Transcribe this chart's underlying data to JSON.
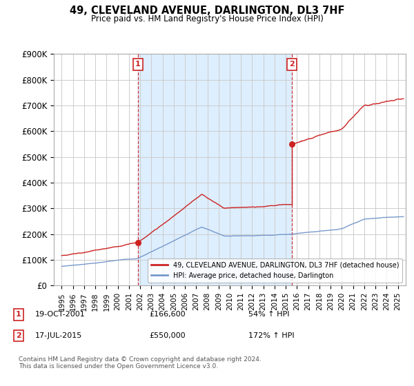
{
  "title": "49, CLEVELAND AVENUE, DARLINGTON, DL3 7HF",
  "subtitle": "Price paid vs. HM Land Registry's House Price Index (HPI)",
  "ylim": [
    0,
    900000
  ],
  "yticks": [
    0,
    100000,
    200000,
    300000,
    400000,
    500000,
    600000,
    700000,
    800000,
    900000
  ],
  "ytick_labels": [
    "£0",
    "£100K",
    "£200K",
    "£300K",
    "£400K",
    "£500K",
    "£600K",
    "£700K",
    "£800K",
    "£900K"
  ],
  "transaction1_date": "19-OCT-2001",
  "transaction1_price": 166600,
  "transaction1_pct": "54% ↑ HPI",
  "transaction2_date": "17-JUL-2015",
  "transaction2_price": 550000,
  "transaction2_pct": "172% ↑ HPI",
  "legend_line1": "49, CLEVELAND AVENUE, DARLINGTON, DL3 7HF (detached house)",
  "legend_line2": "HPI: Average price, detached house, Darlington",
  "footer": "Contains HM Land Registry data © Crown copyright and database right 2024.\nThis data is licensed under the Open Government Licence v3.0.",
  "line_color_red": "#cc2222",
  "line_color_blue": "#7799cc",
  "shade_color": "#ddeeff",
  "vline_color": "#cc2222",
  "background_color": "#ffffff",
  "grid_color": "#cccccc",
  "transaction1_x": 2001.8,
  "transaction2_x": 2015.54,
  "xlim_left": 1994.3,
  "xlim_right": 2025.7
}
